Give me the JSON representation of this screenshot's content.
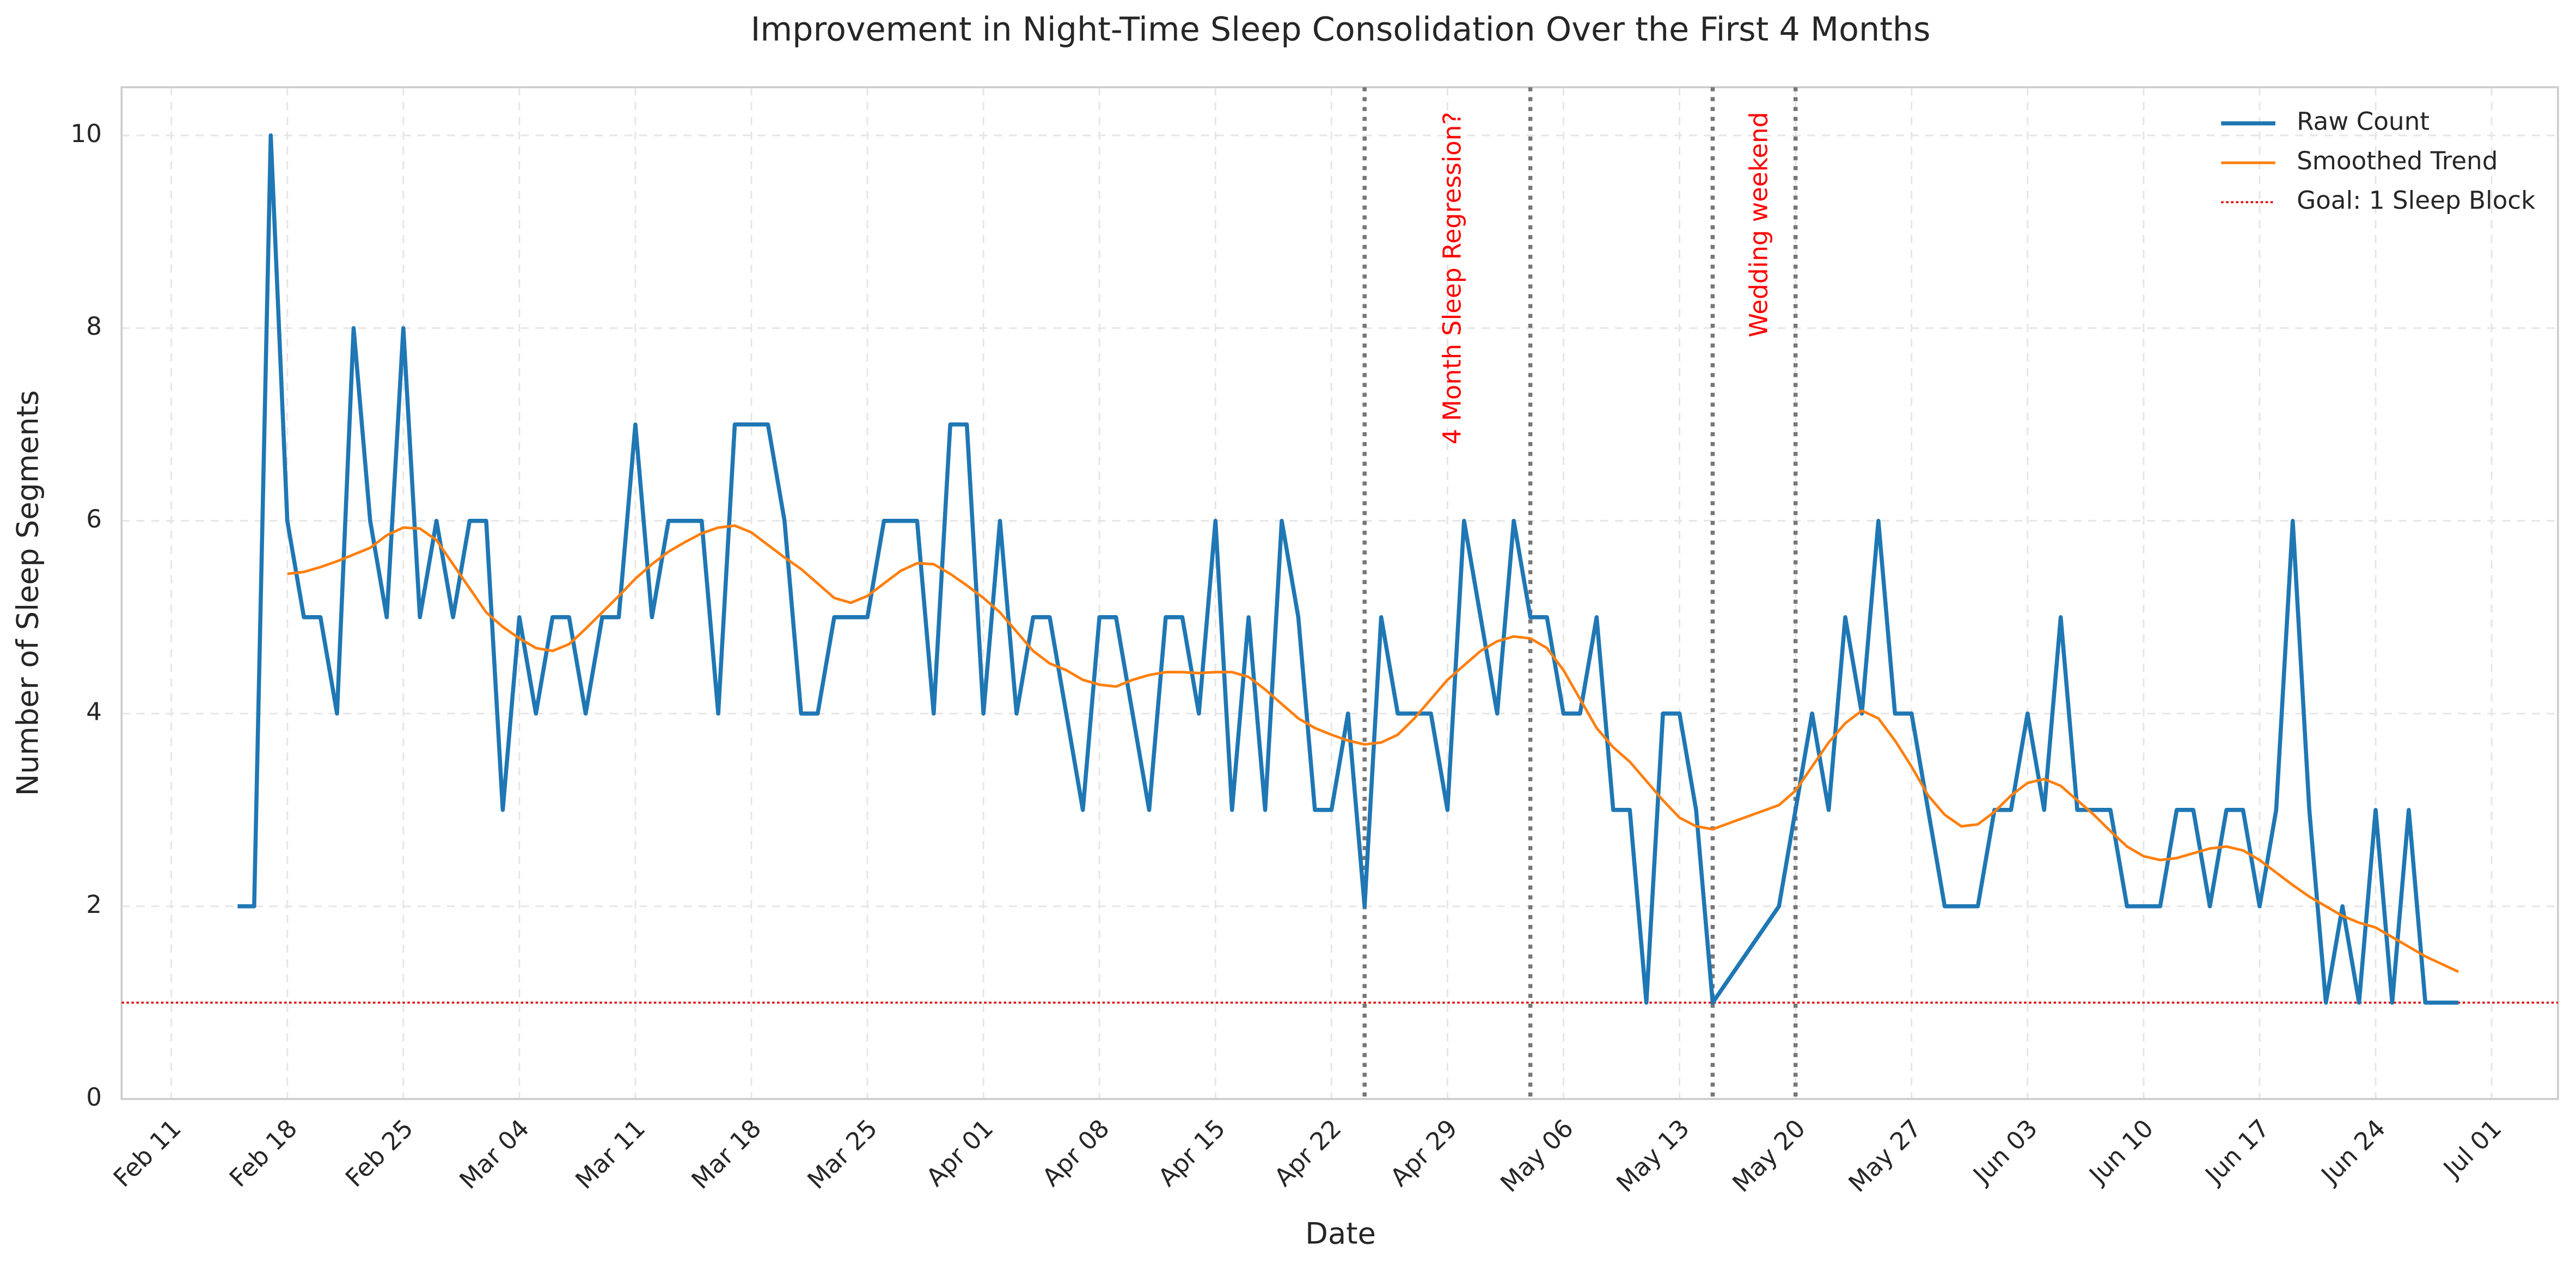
{
  "chart_data": {
    "type": "line",
    "title": "Improvement in Night-Time Sleep Consolidation Over the First 4 Months",
    "x_label": "Date",
    "y_label": "Number of Sleep Segments",
    "x": [
      "Feb 15",
      "Feb 16",
      "Feb 17",
      "Feb 18",
      "Feb 19",
      "Feb 20",
      "Feb 21",
      "Feb 22",
      "Feb 23",
      "Feb 24",
      "Feb 25",
      "Feb 26",
      "Feb 27",
      "Feb 28",
      "Mar 01",
      "Mar 02",
      "Mar 03",
      "Mar 04",
      "Mar 05",
      "Mar 06",
      "Mar 07",
      "Mar 08",
      "Mar 09",
      "Mar 10",
      "Mar 11",
      "Mar 12",
      "Mar 13",
      "Mar 14",
      "Mar 15",
      "Mar 16",
      "Mar 17",
      "Mar 18",
      "Mar 19",
      "Mar 20",
      "Mar 21",
      "Mar 22",
      "Mar 23",
      "Mar 24",
      "Mar 25",
      "Mar 26",
      "Mar 27",
      "Mar 28",
      "Mar 29",
      "Mar 30",
      "Mar 31",
      "Apr 01",
      "Apr 02",
      "Apr 03",
      "Apr 04",
      "Apr 05",
      "Apr 06",
      "Apr 07",
      "Apr 08",
      "Apr 09",
      "Apr 10",
      "Apr 11",
      "Apr 12",
      "Apr 13",
      "Apr 14",
      "Apr 15",
      "Apr 16",
      "Apr 17",
      "Apr 18",
      "Apr 19",
      "Apr 20",
      "Apr 21",
      "Apr 22",
      "Apr 23",
      "Apr 24",
      "Apr 25",
      "Apr 26",
      "Apr 27",
      "Apr 28",
      "Apr 29",
      "Apr 30",
      "May 01",
      "May 02",
      "May 03",
      "May 04",
      "May 05",
      "May 06",
      "May 07",
      "May 08",
      "May 09",
      "May 10",
      "May 11",
      "May 12",
      "May 13",
      "May 14",
      "May 15",
      "May 19",
      "May 20",
      "May 21",
      "May 22",
      "May 23",
      "May 24",
      "May 25",
      "May 26",
      "May 27",
      "May 28",
      "May 29",
      "May 30",
      "May 31",
      "Jun 01",
      "Jun 02",
      "Jun 03",
      "Jun 04",
      "Jun 05",
      "Jun 06",
      "Jun 07",
      "Jun 08",
      "Jun 09",
      "Jun 10",
      "Jun 11",
      "Jun 12",
      "Jun 13",
      "Jun 14",
      "Jun 15",
      "Jun 16",
      "Jun 17",
      "Jun 18",
      "Jun 19",
      "Jun 20",
      "Jun 21",
      "Jun 22",
      "Jun 23",
      "Jun 24",
      "Jun 25",
      "Jun 26",
      "Jun 27",
      "Jun 28",
      "Jun 29"
    ],
    "series": [
      {
        "name": "Raw Count",
        "color": "#1f77b4",
        "width": 2.5,
        "values": [
          2,
          2,
          10,
          6,
          5,
          5,
          4,
          8,
          6,
          5,
          8,
          5,
          6,
          5,
          6,
          6,
          3,
          5,
          4,
          5,
          5,
          4,
          5,
          5,
          7,
          5,
          6,
          6,
          6,
          4,
          7,
          7,
          7,
          6,
          4,
          4,
          5,
          5,
          5,
          6,
          6,
          6,
          4,
          7,
          7,
          4,
          6,
          4,
          5,
          5,
          4,
          3,
          5,
          5,
          4,
          3,
          5,
          5,
          4,
          6,
          3,
          5,
          3,
          6,
          5,
          3,
          3,
          4,
          2,
          5,
          4,
          4,
          4,
          3,
          6,
          5,
          4,
          6,
          5,
          5,
          4,
          4,
          5,
          3,
          3,
          1,
          4,
          4,
          3,
          1,
          2,
          3,
          4,
          3,
          5,
          4,
          6,
          4,
          4,
          3,
          2,
          2,
          2,
          3,
          3,
          4,
          3,
          5,
          3,
          3,
          3,
          2,
          2,
          2,
          3,
          3,
          2,
          3,
          3,
          2,
          3,
          6,
          3,
          1,
          2,
          1,
          3,
          1,
          3,
          1,
          1,
          1
        ]
      },
      {
        "name": "Smoothed Trend",
        "color": "#ff7f0e",
        "width": 1.6,
        "values": [
          null,
          null,
          null,
          5.45,
          5.47,
          5.52,
          5.58,
          5.65,
          5.72,
          5.85,
          5.93,
          5.92,
          5.8,
          5.55,
          5.3,
          5.05,
          4.9,
          4.78,
          4.68,
          4.65,
          4.72,
          4.88,
          5.05,
          5.22,
          5.4,
          5.55,
          5.68,
          5.78,
          5.87,
          5.93,
          5.95,
          5.88,
          5.75,
          5.62,
          5.5,
          5.35,
          5.2,
          5.15,
          5.22,
          5.35,
          5.48,
          5.56,
          5.55,
          5.45,
          5.33,
          5.2,
          5.05,
          4.85,
          4.65,
          4.52,
          4.45,
          4.35,
          4.3,
          4.28,
          4.35,
          4.4,
          4.43,
          4.43,
          4.42,
          4.43,
          4.43,
          4.38,
          4.25,
          4.1,
          3.95,
          3.85,
          3.78,
          3.72,
          3.68,
          3.7,
          3.78,
          3.95,
          4.15,
          4.35,
          4.5,
          4.65,
          4.75,
          4.8,
          4.78,
          4.68,
          4.45,
          4.15,
          3.85,
          3.65,
          3.5,
          3.3,
          3.1,
          2.92,
          2.83,
          2.8,
          3.05,
          3.2,
          3.45,
          3.7,
          3.9,
          4.03,
          3.95,
          3.72,
          3.45,
          3.15,
          2.95,
          2.83,
          2.85,
          2.98,
          3.15,
          3.28,
          3.32,
          3.25,
          3.1,
          2.95,
          2.78,
          2.62,
          2.52,
          2.48,
          2.5,
          2.55,
          2.6,
          2.62,
          2.58,
          2.48,
          2.35,
          2.22,
          2.1,
          2.0,
          1.9,
          1.83,
          1.78,
          1.68,
          1.58,
          1.48,
          1.4,
          1.32
        ]
      }
    ],
    "reference_lines": [
      {
        "name": "Goal: 1 Sleep Block",
        "value": 1,
        "color": "#e00000"
      }
    ],
    "vlines": [
      "Apr 24",
      "May 04",
      "May 15",
      "May 20"
    ],
    "annotations": [
      "4 Month Sleep Regression?",
      "Wedding weekend"
    ],
    "xlim": [
      "Feb 08",
      "Jul 05"
    ],
    "xticks": [
      "Feb 11",
      "Feb 18",
      "Feb 25",
      "Mar 04",
      "Mar 11",
      "Mar 18",
      "Mar 25",
      "Apr 01",
      "Apr 08",
      "Apr 15",
      "Apr 22",
      "Apr 29",
      "May 06",
      "May 13",
      "May 20",
      "May 27",
      "Jun 03",
      "Jun 10",
      "Jun 17",
      "Jun 24",
      "Jul 01"
    ],
    "ylim": [
      0,
      10.5
    ],
    "yticks": [
      0,
      2,
      4,
      6,
      8,
      10
    ],
    "grid": true,
    "legend": "upper right"
  }
}
